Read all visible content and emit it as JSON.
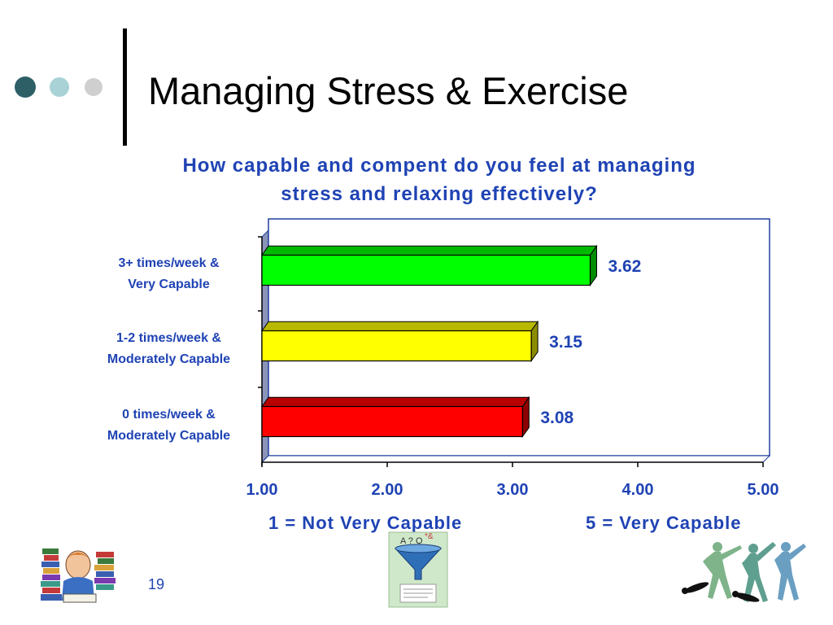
{
  "slide": {
    "title": "Managing Stress & Exercise",
    "page_number": "19",
    "decor_dots": [
      "#2e5f66",
      "#a9d2d6",
      "#cfcfcf"
    ]
  },
  "chart_data": {
    "type": "bar",
    "orientation": "horizontal",
    "title_lines": [
      "How capable and compent do you feel at managing",
      "stress and relaxing effectively?"
    ],
    "categories": [
      [
        "3+ times/week &",
        "Very Capable"
      ],
      [
        "1-2 times/week &",
        "Moderately Capable"
      ],
      [
        "0 times/week &",
        "Moderately Capable"
      ]
    ],
    "values": [
      3.62,
      3.15,
      3.08
    ],
    "value_labels": [
      "3.62",
      "3.15",
      "3.08"
    ],
    "colors": [
      "#00ff00",
      "#ffff00",
      "#ff0000"
    ],
    "xlim": [
      1,
      5
    ],
    "x_ticks": [
      "1.00",
      "2.00",
      "3.00",
      "4.00",
      "5.00"
    ],
    "scale_notes": [
      "1 = Not Very Capable",
      "5 = Very Capable"
    ],
    "grid": false
  },
  "icons": {
    "left": "reading-student-clipart-icon",
    "center": "funnel-clipart-icon",
    "right": "dancers-clipart-icon"
  }
}
